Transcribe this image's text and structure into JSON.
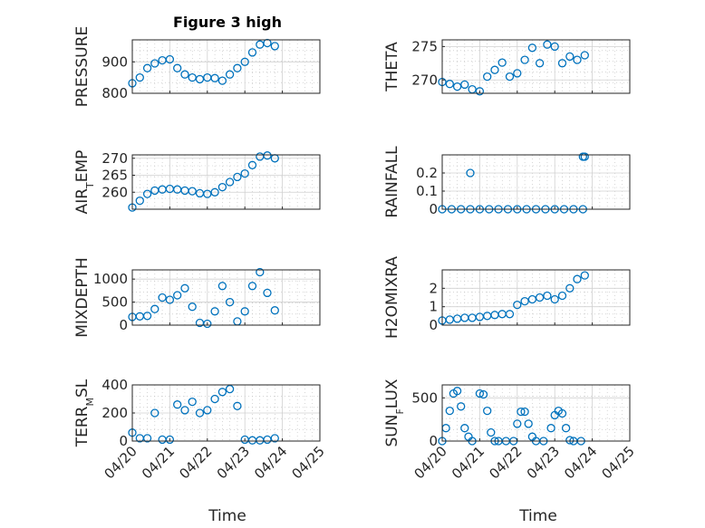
{
  "figure": {
    "title": "Figure 3 high"
  },
  "colors": {
    "marker": "#0072BD",
    "axis": "#262626"
  },
  "xaxis": {
    "label": "Time",
    "ticks": [
      "04/20",
      "04/21",
      "04/22",
      "04/23",
      "04/24",
      "04/25"
    ]
  },
  "chart_data": [
    {
      "type": "scatter",
      "ylabel": "PRESSURE",
      "title": "Figure 3 high",
      "xlim": [
        0,
        5
      ],
      "ylim": [
        800,
        970
      ],
      "yticks": [
        800,
        900
      ],
      "grid": true,
      "x": [
        0,
        0.2,
        0.4,
        0.6,
        0.8,
        1.0,
        1.2,
        1.4,
        1.6,
        1.8,
        2.0,
        2.2,
        2.4,
        2.6,
        2.8,
        3.0,
        3.2,
        3.4,
        3.6,
        3.8
      ],
      "y": [
        832,
        850,
        880,
        895,
        905,
        908,
        880,
        860,
        850,
        845,
        850,
        848,
        840,
        860,
        880,
        900,
        930,
        955,
        960,
        950
      ]
    },
    {
      "type": "scatter",
      "ylabel": "THETA",
      "xlim": [
        0,
        5
      ],
      "ylim": [
        268,
        276
      ],
      "yticks": [
        270,
        275
      ],
      "grid": true,
      "x": [
        0,
        0.2,
        0.4,
        0.6,
        0.8,
        1.0,
        1.2,
        1.4,
        1.6,
        1.8,
        2.0,
        2.2,
        2.4,
        2.6,
        2.8,
        3.0,
        3.2,
        3.4,
        3.6,
        3.8
      ],
      "y": [
        269.7,
        269.4,
        269.0,
        269.3,
        268.6,
        268.3,
        270.5,
        271.5,
        272.6,
        270.5,
        271.0,
        273.0,
        274.8,
        272.5,
        275.3,
        275.0,
        272.5,
        273.5,
        273.0,
        273.7
      ]
    },
    {
      "type": "scatter",
      "ylabel": "AIR_TEMP",
      "xlim": [
        0,
        5
      ],
      "ylim": [
        255,
        271
      ],
      "yticks": [
        260,
        265,
        270
      ],
      "grid": true,
      "x": [
        0,
        0.2,
        0.4,
        0.6,
        0.8,
        1.0,
        1.2,
        1.4,
        1.6,
        1.8,
        2.0,
        2.2,
        2.4,
        2.6,
        2.8,
        3.0,
        3.2,
        3.4,
        3.6,
        3.8
      ],
      "y": [
        255.5,
        257.5,
        259.5,
        260.5,
        260.8,
        261.0,
        260.8,
        260.5,
        260.3,
        259.7,
        259.5,
        260.0,
        261.5,
        263.0,
        264.5,
        265.5,
        268.0,
        270.5,
        270.8,
        270.0
      ]
    },
    {
      "type": "scatter",
      "ylabel": "RAINFALL",
      "xlim": [
        0,
        5
      ],
      "ylim": [
        0,
        0.3
      ],
      "yticks": [
        0,
        0.1,
        0.2
      ],
      "grid": true,
      "x": [
        0,
        0.25,
        0.5,
        0.75,
        1.0,
        1.25,
        1.5,
        1.75,
        2.0,
        2.25,
        2.5,
        2.75,
        3.0,
        3.25,
        3.5,
        3.75,
        0.75,
        3.75,
        3.8
      ],
      "y": [
        0,
        0,
        0,
        0,
        0,
        0,
        0,
        0,
        0,
        0,
        0,
        0,
        0,
        0,
        0,
        0,
        0.2,
        0.29,
        0.29
      ]
    },
    {
      "type": "scatter",
      "ylabel": "MIXDEPTH",
      "xlim": [
        0,
        5
      ],
      "ylim": [
        0,
        1200
      ],
      "yticks": [
        0,
        500,
        1000
      ],
      "grid": true,
      "x": [
        0,
        0.2,
        0.4,
        0.6,
        0.8,
        1.0,
        1.2,
        1.4,
        1.6,
        1.8,
        2.0,
        2.2,
        2.4,
        2.6,
        2.8,
        3.0,
        3.2,
        3.4,
        3.6,
        3.8
      ],
      "y": [
        180,
        190,
        200,
        350,
        600,
        550,
        650,
        800,
        400,
        50,
        30,
        300,
        850,
        500,
        80,
        300,
        850,
        1150,
        700,
        320
      ]
    },
    {
      "type": "scatter",
      "ylabel": "H2OMIXRA",
      "xlim": [
        0,
        5
      ],
      "ylim": [
        0,
        3
      ],
      "yticks": [
        0,
        1,
        2
      ],
      "grid": true,
      "x": [
        0,
        0.2,
        0.4,
        0.6,
        0.8,
        1.0,
        1.2,
        1.4,
        1.6,
        1.8,
        2.0,
        2.2,
        2.4,
        2.6,
        2.8,
        3.0,
        3.2,
        3.4,
        3.6,
        3.8
      ],
      "y": [
        0.25,
        0.3,
        0.35,
        0.4,
        0.4,
        0.45,
        0.5,
        0.55,
        0.6,
        0.6,
        1.1,
        1.3,
        1.4,
        1.5,
        1.6,
        1.4,
        1.6,
        2.0,
        2.5,
        2.7
      ]
    },
    {
      "type": "scatter",
      "ylabel": "TERR_MSL",
      "xlim": [
        0,
        5
      ],
      "ylim": [
        0,
        400
      ],
      "yticks": [
        0,
        200,
        400
      ],
      "grid": true,
      "x": [
        0,
        0.2,
        0.4,
        0.6,
        0.8,
        1.0,
        1.2,
        1.4,
        1.6,
        1.8,
        2.0,
        2.2,
        2.4,
        2.6,
        2.8,
        3.0,
        3.2,
        3.4,
        3.6,
        3.8
      ],
      "y": [
        60,
        20,
        20,
        200,
        10,
        10,
        260,
        220,
        280,
        200,
        220,
        300,
        350,
        370,
        250,
        10,
        5,
        5,
        10,
        20
      ]
    },
    {
      "type": "scatter",
      "ylabel": "SUN_FLUX",
      "xlim": [
        0,
        5
      ],
      "ylim": [
        0,
        650
      ],
      "yticks": [
        0,
        500
      ],
      "grid": true,
      "x": [
        0,
        0.1,
        0.2,
        0.3,
        0.4,
        0.5,
        0.6,
        0.7,
        0.8,
        1.0,
        1.1,
        1.2,
        1.3,
        1.4,
        1.5,
        1.7,
        1.9,
        2.0,
        2.1,
        2.2,
        2.3,
        2.4,
        2.5,
        2.7,
        2.9,
        3.0,
        3.1,
        3.2,
        3.3,
        3.4,
        3.5,
        3.7
      ],
      "y": [
        0,
        150,
        350,
        550,
        580,
        400,
        150,
        50,
        0,
        550,
        540,
        350,
        100,
        0,
        0,
        0,
        0,
        200,
        340,
        340,
        200,
        50,
        0,
        0,
        150,
        300,
        350,
        320,
        150,
        10,
        0,
        0
      ]
    }
  ]
}
